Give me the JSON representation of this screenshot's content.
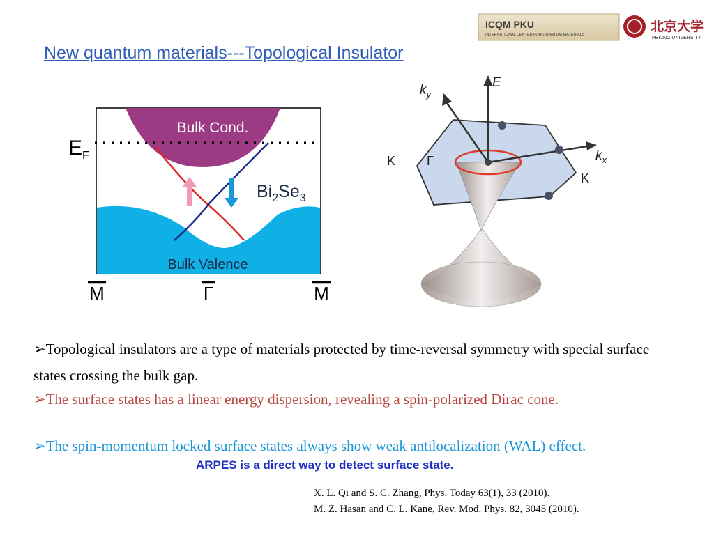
{
  "header": {
    "title": "New quantum materials---Topological Insulator",
    "logo": {
      "name": "ICQM PKU",
      "subtitle": "INTERNATIONAL CENTER FOR QUANTUM MATERIALS",
      "university_cn": "北京大学",
      "university_en": "PEKING UNIVERSITY"
    }
  },
  "figures": {
    "band": {
      "conduction": "Bulk Cond.",
      "fermi": {
        "main": "E",
        "sub": "F"
      },
      "material": [
        "Bi",
        "2",
        "Se",
        "3"
      ],
      "valence": "Bulk Valence",
      "k_points": [
        "M",
        "Γ",
        "M"
      ]
    },
    "cone": {
      "energy": "E",
      "ky": [
        "k",
        "y"
      ],
      "kx": [
        "k",
        "x"
      ],
      "gamma": "Γ",
      "k_left": "K",
      "k_right": "K"
    }
  },
  "body": {
    "marker": "➢",
    "bullets": [
      "Topological insulators are a type of materials protected by time-reversal symmetry with special  surface states crossing the bulk gap.",
      "The surface states has a linear energy dispersion, revealing a spin-polarized Dirac cone.",
      "The spin-momentum locked surface states always show weak antilocalization (WAL) effect."
    ],
    "highlight": "ARPES is a direct way to detect surface state.",
    "references": [
      "X. L.  Qi and S. C. Zhang, Phys. Today 63(1), 33 (2010).",
      "M. Z. Hasan and C. L. Kane, Rev. Mod. Phys. 82, 3045 (2010)."
    ]
  }
}
